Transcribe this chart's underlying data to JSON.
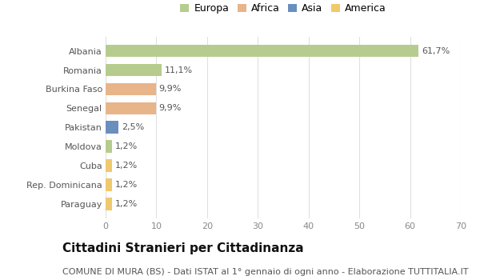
{
  "countries": [
    "Albania",
    "Romania",
    "Burkina Faso",
    "Senegal",
    "Pakistan",
    "Moldova",
    "Cuba",
    "Rep. Dominicana",
    "Paraguay"
  ],
  "values": [
    61.7,
    11.1,
    9.9,
    9.9,
    2.5,
    1.2,
    1.2,
    1.2,
    1.2
  ],
  "labels": [
    "61,7%",
    "11,1%",
    "9,9%",
    "9,9%",
    "2,5%",
    "1,2%",
    "1,2%",
    "1,2%",
    "1,2%"
  ],
  "colors": [
    "#b5cc8e",
    "#b5cc8e",
    "#e8b48a",
    "#e8b48a",
    "#6a8fbe",
    "#b5cc8e",
    "#f0c96e",
    "#f0c96e",
    "#f0c96e"
  ],
  "legend": [
    {
      "label": "Europa",
      "color": "#b5cc8e"
    },
    {
      "label": "Africa",
      "color": "#e8b48a"
    },
    {
      "label": "Asia",
      "color": "#6a8fbe"
    },
    {
      "label": "America",
      "color": "#f0c96e"
    }
  ],
  "xlim": [
    0,
    70
  ],
  "xticks": [
    0,
    10,
    20,
    30,
    40,
    50,
    60,
    70
  ],
  "title": "Cittadini Stranieri per Cittadinanza",
  "subtitle": "COMUNE DI MURA (BS) - Dati ISTAT al 1° gennaio di ogni anno - Elaborazione TUTTITALIA.IT",
  "bg_color": "#ffffff",
  "plot_bg": "#ffffff",
  "grid_color": "#e0e0e0",
  "title_fontsize": 11,
  "subtitle_fontsize": 8,
  "label_fontsize": 8,
  "tick_fontsize": 8,
  "bar_height": 0.65,
  "bar_alpha": 1.0
}
